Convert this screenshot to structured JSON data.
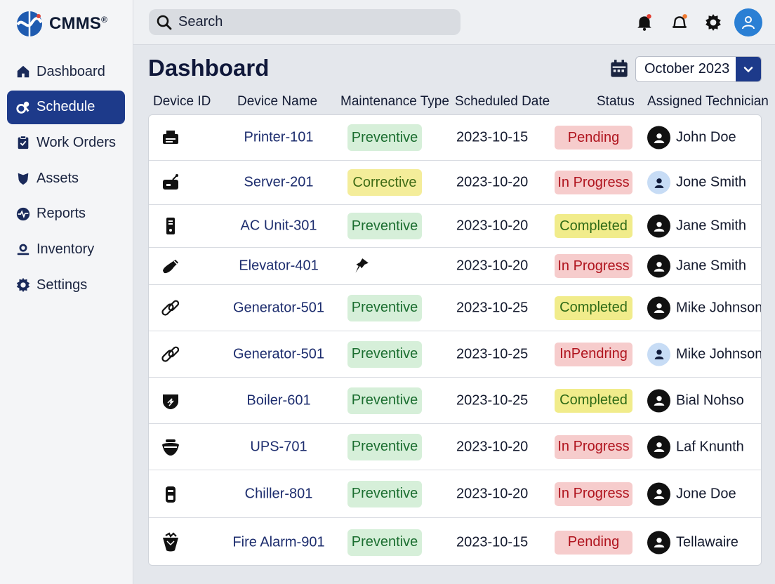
{
  "app": {
    "name": "CMMS",
    "trademark": "®"
  },
  "sidebar": {
    "items": [
      {
        "label": "Dashboard",
        "icon": "home-icon",
        "active": false
      },
      {
        "label": "Schedule",
        "icon": "schedule-gear-icon",
        "active": true
      },
      {
        "label": "Work Orders",
        "icon": "clipboard-icon",
        "active": false
      },
      {
        "label": "Assets",
        "icon": "shield-icon",
        "active": false
      },
      {
        "label": "Reports",
        "icon": "pulse-icon",
        "active": false
      },
      {
        "label": "Inventory",
        "icon": "person-badge-icon",
        "active": false
      },
      {
        "label": "Settings",
        "icon": "gear-icon",
        "active": false
      }
    ]
  },
  "topbar": {
    "search_placeholder": "Search",
    "icons": [
      "search-icon",
      "notification-bell-icon",
      "alert-bell-icon",
      "gear-icon",
      "user-avatar-icon"
    ]
  },
  "main": {
    "title": "Dashboard",
    "month_select": {
      "value": "October 2023",
      "icon": "calendar-icon"
    }
  },
  "table": {
    "headers": [
      "Device ID",
      "Device Name",
      "Maintenance Type",
      "Scheduled Date",
      "Status",
      "Assigned Technician"
    ],
    "rows": [
      {
        "icon": "printer-icon",
        "name": "Printer-101",
        "type": "Preventive",
        "date": "2023-10-15",
        "status": "Pending",
        "technician": "John Doe",
        "avatar": "dark"
      },
      {
        "icon": "server-icon",
        "name": "Server-201",
        "type": "Corrective",
        "date": "2023-10-20",
        "status": "In Progress",
        "technician": "Jone Smith",
        "avatar": "light"
      },
      {
        "icon": "ac-unit-icon",
        "name": "AC Unit-301",
        "type": "Preventive",
        "date": "2023-10-20",
        "status": "Completed",
        "technician": "Jane Smith",
        "avatar": "dark"
      },
      {
        "icon": "elevator-icon",
        "name": "Elevator-401",
        "type": "",
        "type_icon": "pin-icon",
        "date": "2023-10-20",
        "status": "In Progress",
        "technician": "Jane Smith",
        "avatar": "dark"
      },
      {
        "icon": "link-icon",
        "name": "Generator-501",
        "type": "Preventive",
        "date": "2023-10-25",
        "status": "Completed",
        "technician": "Mike Johnson",
        "avatar": "dark"
      },
      {
        "icon": "link-icon",
        "name": "Generator-501",
        "type": "Preventive",
        "date": "2023-10-25",
        "status": "InPendring",
        "technician": "Mike Johnson",
        "avatar": "light"
      },
      {
        "icon": "boiler-icon",
        "name": "Boiler-601",
        "type": "Preventive",
        "date": "2023-10-25",
        "status": "Completed",
        "technician": "Bial Nohso",
        "avatar": "dark"
      },
      {
        "icon": "ups-icon",
        "name": "UPS-701",
        "type": "Preventive",
        "date": "2023-10-20",
        "status": "In Progress",
        "technician": "Laf Knunth",
        "avatar": "dark"
      },
      {
        "icon": "chiller-icon",
        "name": "Chiller-801",
        "type": "Preventive",
        "date": "2023-10-20",
        "status": "In Progress",
        "technician": "Jone Doe",
        "avatar": "dark"
      },
      {
        "icon": "fire-alarm-icon",
        "name": "Fire Alarm-901",
        "type": "Preventive",
        "date": "2023-10-15",
        "status": "Pending",
        "technician": "Tellawaire",
        "avatar": "dark"
      }
    ]
  },
  "colors": {
    "accent": "#1d3a8a",
    "avatar": "#2a7fd4",
    "preventive_bg": "#d6efd9",
    "corrective_bg": "#f4ed9a",
    "pending_bg": "#f6cccc",
    "completed_bg": "#f1ec8b"
  }
}
